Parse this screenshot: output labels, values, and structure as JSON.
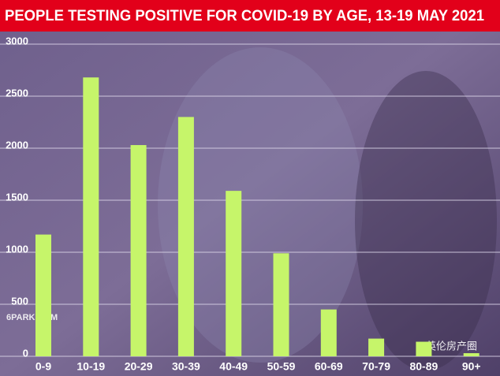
{
  "chart_data": {
    "type": "bar",
    "title": "PEOPLE TESTING POSITIVE FOR COVID-19 BY AGE, 13-19 MAY 2021",
    "categories": [
      "0-9",
      "10-19",
      "20-29",
      "30-39",
      "40-49",
      "50-59",
      "60-69",
      "70-79",
      "80-89",
      "90+"
    ],
    "values": [
      1170,
      2680,
      2030,
      2300,
      1590,
      990,
      450,
      170,
      140,
      30
    ],
    "color": "#c6f56a",
    "ylim": [
      0,
      3000
    ],
    "yticks": [
      0,
      500,
      1000,
      1500,
      2000,
      2500,
      3000
    ],
    "grid": true
  },
  "watermarks": [
    "6PARK.COM",
    "英伦房产圈"
  ]
}
